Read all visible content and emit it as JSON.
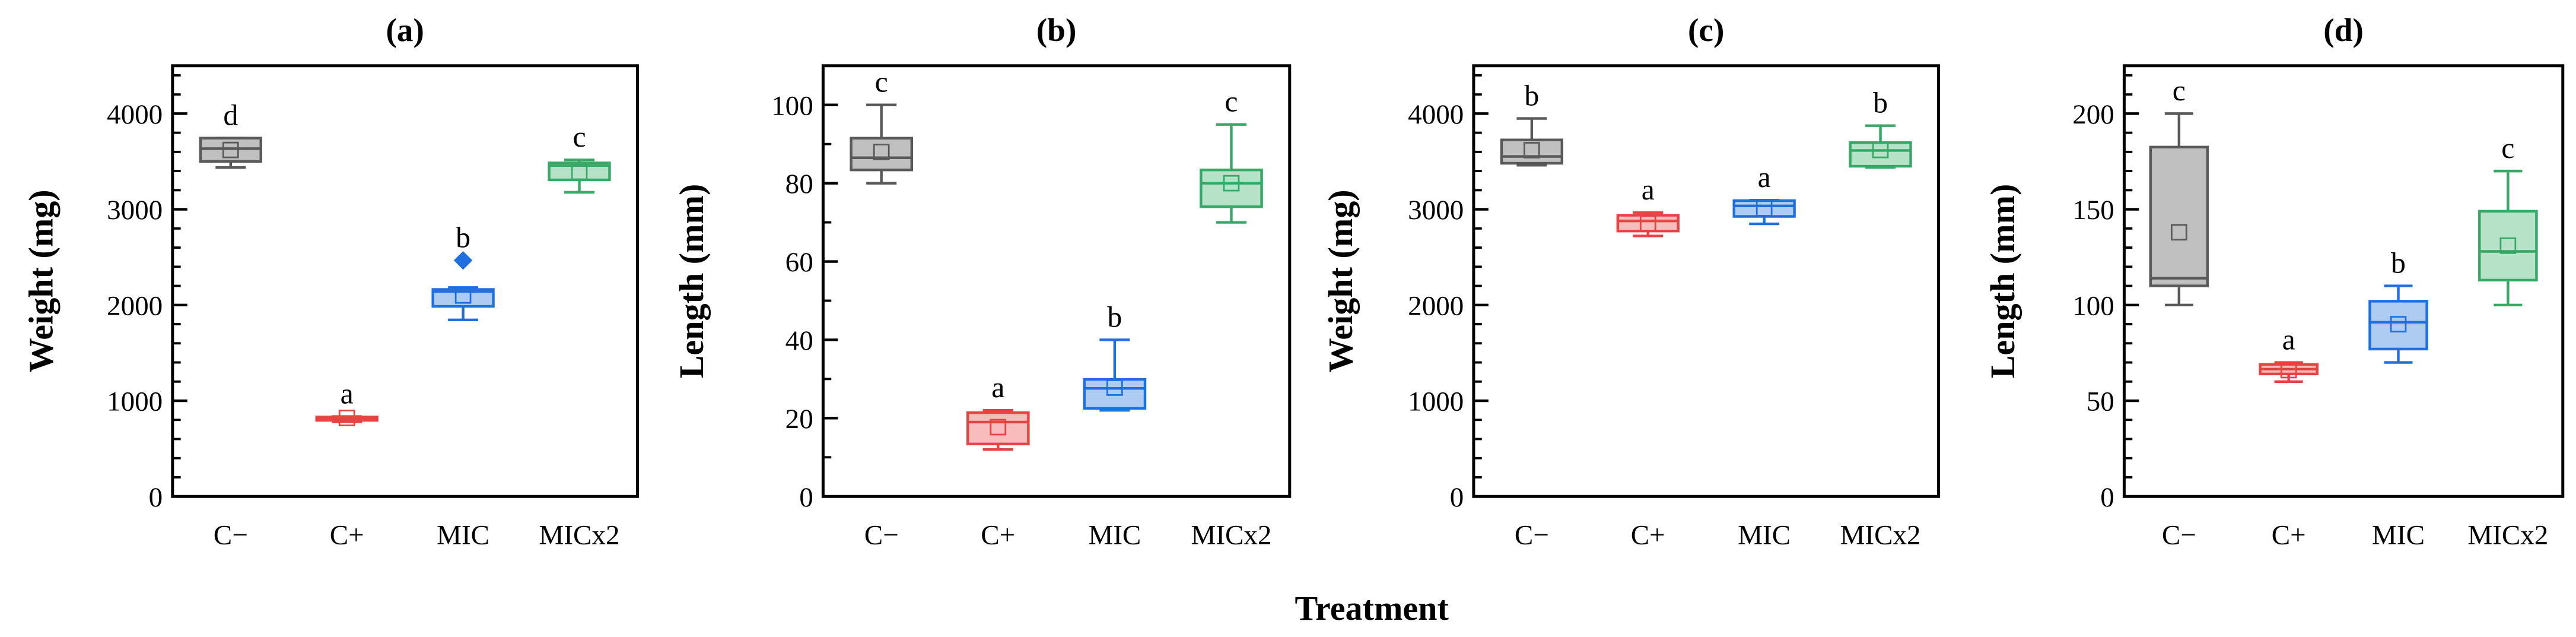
{
  "xlabel": "Treatment",
  "colors": {
    "C−": {
      "stroke": "#595959",
      "fill": "#c0c0c0"
    },
    "C+": {
      "stroke": "#e84343",
      "fill": "#f8bcbc"
    },
    "MIC": {
      "stroke": "#1f6fe0",
      "fill": "#aecbf2"
    },
    "MICx2": {
      "stroke": "#38a866",
      "fill": "#b6e2c8"
    }
  },
  "chart_data": [
    {
      "type": "box",
      "title": "(a)",
      "ylabel": "Weight (mg)",
      "xlabel": "Treatment",
      "categories": [
        "C−",
        "C+",
        "MIC",
        "MICx2"
      ],
      "ylim": [
        0,
        4500
      ],
      "yticks": [
        0,
        1000,
        2000,
        3000,
        4000
      ],
      "minor_step": 200,
      "boxes": [
        {
          "min": 3437,
          "q1": 3500,
          "median": 3634,
          "q3": 3744,
          "max": 3744,
          "mean": 3620,
          "outliers": [],
          "letter": "d"
        },
        {
          "min": 780,
          "q1": 795,
          "median": 810,
          "q3": 830,
          "max": 835,
          "mean": 820,
          "outliers": [],
          "letter": "a"
        },
        {
          "min": 1845,
          "q1": 1986,
          "median": 2143,
          "q3": 2163,
          "max": 2183,
          "mean": 2100,
          "outliers": [
            2466
          ],
          "letter": "b"
        },
        {
          "min": 3178,
          "q1": 3308,
          "median": 3457,
          "q3": 3485,
          "max": 3516,
          "mean": 3390,
          "outliers": [],
          "letter": "c"
        }
      ]
    },
    {
      "type": "box",
      "title": "(b)",
      "ylabel": "Length (mm)",
      "xlabel": "Treatment",
      "categories": [
        "C−",
        "C+",
        "MIC",
        "MICx2"
      ],
      "ylim": [
        0,
        110
      ],
      "yticks": [
        0,
        20,
        40,
        60,
        80,
        100
      ],
      "minor_step": 10,
      "boxes": [
        {
          "min": 80,
          "q1": 83.4,
          "median": 86.5,
          "q3": 91.5,
          "max": 100,
          "mean": 88,
          "outliers": [],
          "letter": "c"
        },
        {
          "min": 12,
          "q1": 13.4,
          "median": 19,
          "q3": 21.4,
          "max": 22,
          "mean": 17.7,
          "outliers": [],
          "letter": "a"
        },
        {
          "min": 22,
          "q1": 22.5,
          "median": 27.6,
          "q3": 29.9,
          "max": 40,
          "mean": 27.8,
          "outliers": [],
          "letter": "b"
        },
        {
          "min": 70,
          "q1": 74,
          "median": 80,
          "q3": 83.4,
          "max": 95,
          "mean": 80,
          "outliers": [],
          "letter": "c"
        }
      ]
    },
    {
      "type": "box",
      "title": "(c)",
      "ylabel": "Weight (mg)",
      "xlabel": "Treatment",
      "categories": [
        "C−",
        "C+",
        "MIC",
        "MICx2"
      ],
      "ylim": [
        0,
        4500
      ],
      "yticks": [
        0,
        1000,
        2000,
        3000,
        4000
      ],
      "minor_step": 200,
      "boxes": [
        {
          "min": 3461,
          "q1": 3481,
          "median": 3552,
          "q3": 3725,
          "max": 3949,
          "mean": 3618,
          "outliers": [],
          "letter": "b"
        },
        {
          "min": 2722,
          "q1": 2773,
          "median": 2879,
          "q3": 2938,
          "max": 2966,
          "mean": 2852,
          "outliers": [],
          "letter": "a"
        },
        {
          "min": 2848,
          "q1": 2926,
          "median": 3036,
          "q3": 3091,
          "max": 3095,
          "mean": 3010,
          "outliers": [],
          "letter": "a"
        },
        {
          "min": 3438,
          "q1": 3450,
          "median": 3615,
          "q3": 3697,
          "max": 3874,
          "mean": 3620,
          "outliers": [],
          "letter": "b"
        }
      ]
    },
    {
      "type": "box",
      "title": "(d)",
      "ylabel": "Length (mm)",
      "xlabel": "Treatment",
      "categories": [
        "C−",
        "C+",
        "MIC",
        "MICx2"
      ],
      "ylim": [
        0,
        225
      ],
      "yticks": [
        0,
        50,
        100,
        150,
        200
      ],
      "minor_step": 10,
      "boxes": [
        {
          "min": 100,
          "q1": 110,
          "median": 114,
          "q3": 182.5,
          "max": 200,
          "mean": 138,
          "outliers": [],
          "letter": "c"
        },
        {
          "min": 60,
          "q1": 64,
          "median": 66.5,
          "q3": 69,
          "max": 70,
          "mean": 66,
          "outliers": [],
          "letter": "a"
        },
        {
          "min": 70,
          "q1": 77,
          "median": 91,
          "q3": 102,
          "max": 110,
          "mean": 90,
          "outliers": [],
          "letter": "b"
        },
        {
          "min": 100,
          "q1": 113,
          "median": 128,
          "q3": 149,
          "max": 170,
          "mean": 131,
          "outliers": [],
          "letter": "c"
        }
      ]
    }
  ]
}
